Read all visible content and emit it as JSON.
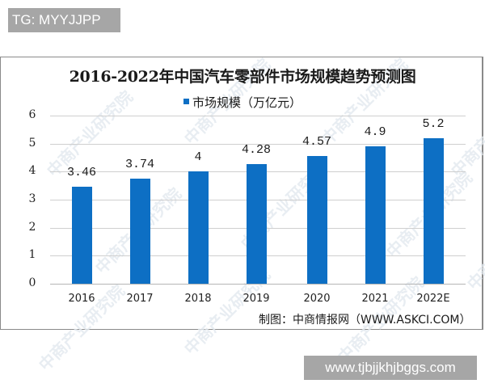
{
  "badges": {
    "top_left": "TG: MYYJJPP",
    "bottom_right": "www.tjbjjkhjbggs.com"
  },
  "colors": {
    "bar": "#0d6fc4",
    "gridline": "#cfcfcf",
    "badge_bg": "#a6a6a6"
  },
  "chart_data": {
    "type": "bar",
    "title": "2016-2022年中国汽车零部件市场规模趋势预测图",
    "legend": [
      "市场规模（万亿元）"
    ],
    "legend_position": "top",
    "categories": [
      "2016",
      "2017",
      "2018",
      "2019",
      "2020",
      "2021",
      "2022E"
    ],
    "series": [
      {
        "name": "市场规模（万亿元）",
        "values": [
          3.46,
          3.74,
          4,
          4.28,
          4.57,
          4.9,
          5.2
        ],
        "labels": [
          "3.46",
          "3.74",
          "4",
          "4.28",
          "4.57",
          "4.9",
          "5.2"
        ]
      }
    ],
    "xlabel": "",
    "ylabel": "",
    "ylim": [
      0,
      6
    ],
    "yticks": [
      "0",
      "1",
      "2",
      "3",
      "4",
      "5",
      "6"
    ],
    "grid": true,
    "source": "制图：中商情报网（WWW.ASKCI.COM）",
    "watermark": "中商产业研究院"
  }
}
